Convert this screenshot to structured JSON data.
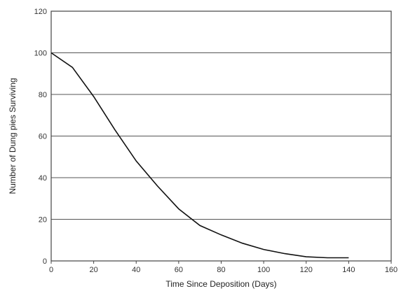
{
  "chart_data": {
    "type": "line",
    "title": "",
    "xlabel": "Time Since Deposition (Days)",
    "ylabel": "Number of Dung pies Surviving",
    "xlim": [
      0,
      160
    ],
    "ylim": [
      0,
      120
    ],
    "xticks": [
      0,
      20,
      40,
      60,
      80,
      100,
      120,
      140,
      160
    ],
    "yticks": [
      0,
      20,
      40,
      60,
      80,
      100,
      120
    ],
    "grid": "horizontal",
    "legend": "none",
    "series": [
      {
        "color": "#111111",
        "x": [
          0,
          10,
          20,
          30,
          40,
          50,
          60,
          70,
          80,
          90,
          100,
          110,
          120,
          130,
          140
        ],
        "y": [
          100,
          93,
          79,
          63,
          48,
          36,
          25,
          17,
          12.5,
          8.5,
          5.5,
          3.5,
          2,
          1.5,
          1.5
        ]
      }
    ]
  }
}
